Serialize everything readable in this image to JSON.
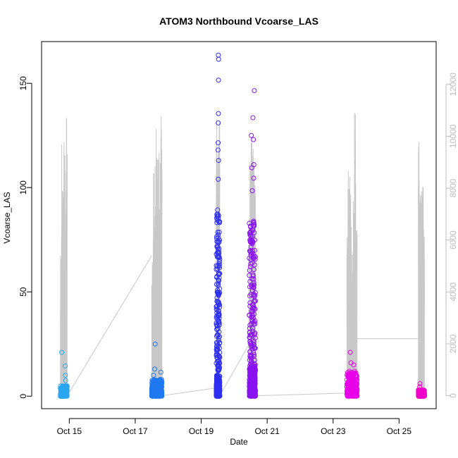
{
  "chart_data": {
    "type": "scatter",
    "title": "ATOM3 Northbound Vcoarse_LAS",
    "xlabel": "Date",
    "ylabel": "Vcoarse_LAS",
    "x_axis": {
      "type": "date",
      "range": [
        "2023-10-14T03:50",
        "2023-10-26T03:00"
      ],
      "ticks": [
        {
          "value": "2023-10-15",
          "label": "Oct 15"
        },
        {
          "value": "2023-10-17",
          "label": "Oct 17"
        },
        {
          "value": "2023-10-19",
          "label": "Oct 19"
        },
        {
          "value": "2023-10-21",
          "label": "Oct 21"
        },
        {
          "value": "2023-10-23",
          "label": "Oct 23"
        },
        {
          "value": "2023-10-25",
          "label": "Oct 25"
        }
      ]
    },
    "y_axis": {
      "range": [
        -6,
        170
      ],
      "ticks": [
        0,
        50,
        100,
        150
      ]
    },
    "y2_axis": {
      "range": [
        -500,
        13650
      ],
      "ticks": [
        0,
        2000,
        4000,
        6000,
        8000,
        10000,
        12000
      ],
      "color": "#bdbdbd"
    },
    "grid": false,
    "legend": "none",
    "series": [
      {
        "color": "#2aa7f0",
        "start": "2023-10-14T17:30",
        "end": "2023-10-14T22:30",
        "base_max": 5,
        "outliers": [
          {
            "x": "2023-10-14T18:30",
            "y": 21
          },
          {
            "x": "2023-10-14T21:00",
            "y": 14.5
          },
          {
            "x": "2023-10-14T21:10",
            "y": 10
          },
          {
            "x": "2023-10-14T21:20",
            "y": 7.5
          }
        ]
      },
      {
        "color": "#1f78f0",
        "start": "2023-10-17T12:00",
        "end": "2023-10-17T19:30",
        "base_max": 8,
        "outliers": [
          {
            "x": "2023-10-17T14:30",
            "y": 25
          },
          {
            "x": "2023-10-17T14:10",
            "y": 13
          },
          {
            "x": "2023-10-17T18:40",
            "y": 11.5
          },
          {
            "x": "2023-10-17T13:20",
            "y": 10
          }
        ]
      },
      {
        "color": "#2f2ff0",
        "start": "2023-10-19T11:00",
        "end": "2023-10-19T13:30",
        "base_max": 10,
        "tall_max": 90,
        "outliers": [
          {
            "x": "2023-10-19T12:30",
            "y": 163.5
          },
          {
            "x": "2023-10-19T12:40",
            "y": 161.5
          },
          {
            "x": "2023-10-19T12:35",
            "y": 151.5
          },
          {
            "x": "2023-10-19T12:30",
            "y": 135.5
          },
          {
            "x": "2023-10-19T12:25",
            "y": 131
          },
          {
            "x": "2023-10-19T12:20",
            "y": 121.5
          },
          {
            "x": "2023-10-19T12:15",
            "y": 118
          },
          {
            "x": "2023-10-19T12:40",
            "y": 113
          },
          {
            "x": "2023-10-19T12:25",
            "y": 104
          }
        ]
      },
      {
        "color": "#8a12f0",
        "start": "2023-10-20T11:00",
        "end": "2023-10-20T15:30",
        "base_max": 14,
        "tall_max": 84,
        "outliers": [
          {
            "x": "2023-10-20T14:40",
            "y": 146.5
          },
          {
            "x": "2023-10-20T13:40",
            "y": 133.5
          },
          {
            "x": "2023-10-20T12:30",
            "y": 125
          },
          {
            "x": "2023-10-20T14:00",
            "y": 123
          },
          {
            "x": "2023-10-20T14:20",
            "y": 111
          },
          {
            "x": "2023-10-20T12:50",
            "y": 109.5
          },
          {
            "x": "2023-10-20T14:10",
            "y": 104.5
          },
          {
            "x": "2023-10-20T13:10",
            "y": 98.5
          }
        ]
      },
      {
        "color": "#e800e8",
        "start": "2023-10-23T10:00",
        "end": "2023-10-23T17:30",
        "base_max": 12,
        "outliers": [
          {
            "x": "2023-10-23T12:30",
            "y": 21
          },
          {
            "x": "2023-10-23T13:00",
            "y": 16
          },
          {
            "x": "2023-10-23T15:00",
            "y": 15
          }
        ]
      },
      {
        "color": "#f000c8",
        "start": "2023-10-25T14:00",
        "end": "2023-10-25T18:30",
        "base_max": 3,
        "outliers": [
          {
            "x": "2023-10-25T15:10",
            "y": 6
          },
          {
            "x": "2023-10-25T15:00",
            "y": 4.5
          }
        ]
      }
    ],
    "secondary_line": {
      "color": "#c8c8c8",
      "bursts": [
        {
          "start": "2023-10-14T17:30",
          "end": "2023-10-14T22:30",
          "peaks": [
            5800,
            10100,
            9800,
            10500,
            10400,
            11900
          ]
        },
        {
          "start": "2023-10-17T12:00",
          "end": "2023-10-17T19:30",
          "peaks": [
            5400,
            9900,
            10100,
            10500,
            10400,
            11000,
            12300,
            13200
          ]
        },
        {
          "start": "2023-10-19T11:00",
          "end": "2023-10-19T13:30",
          "peaks": [
            11200,
            10800,
            9600,
            10400,
            11600
          ]
        },
        {
          "start": "2023-10-20T11:00",
          "end": "2023-10-20T15:30",
          "peaks": [
            9300,
            10600,
            11200,
            11800,
            10400,
            8800
          ]
        },
        {
          "start": "2023-10-23T10:00",
          "end": "2023-10-23T17:30",
          "peaks": [
            8800,
            8600,
            7900,
            5900,
            8200,
            12300,
            6900
          ]
        },
        {
          "start": "2023-10-25T14:00",
          "end": "2023-10-25T18:30",
          "peaks": [
            10100,
            8400,
            8600,
            9000,
            6600
          ]
        }
      ],
      "connectors": [
        [
          "2023-10-14T22:30",
          0,
          "2023-10-17T12:00",
          5400
        ],
        [
          "2023-10-17T19:30",
          0,
          "2023-10-19T11:00",
          300
        ],
        [
          "2023-10-19T13:30",
          0,
          "2023-10-20T11:00",
          2000
        ],
        [
          "2023-10-20T15:30",
          0,
          "2023-10-23T10:00",
          100
        ],
        [
          "2023-10-23T17:30",
          2200,
          "2023-10-25T14:00",
          2200
        ]
      ]
    }
  }
}
